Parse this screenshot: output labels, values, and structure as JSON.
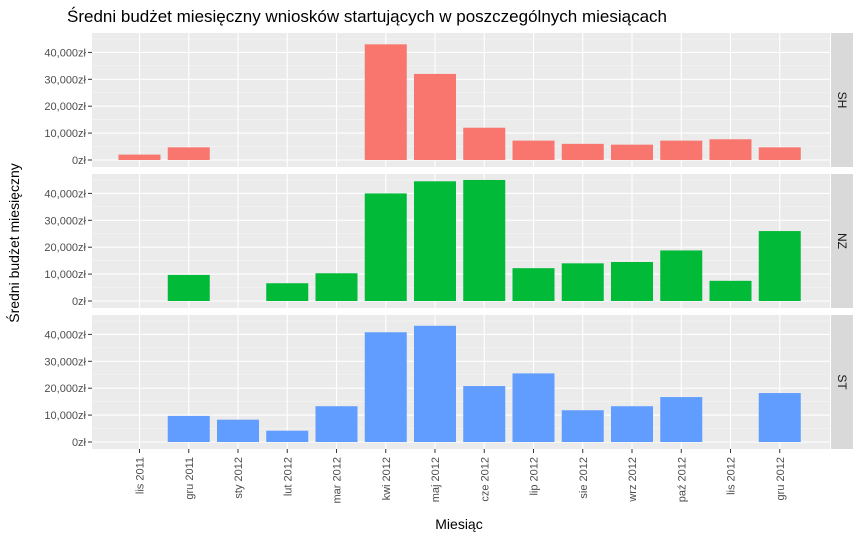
{
  "chart_data": {
    "type": "bar",
    "title": "Średni budżet miesięczny wniosków startujących w poszczególnych miesiącach",
    "xlabel": "Miesiąc",
    "ylabel": "Średni budżet miesięczny",
    "categories": [
      "lis 2011",
      "gru 2011",
      "sty 2012",
      "lut 2012",
      "mar 2012",
      "kwi 2012",
      "maj 2012",
      "cze 2012",
      "lip 2012",
      "sie 2012",
      "wrz 2012",
      "paź 2012",
      "lis 2012",
      "gru 2012"
    ],
    "y_ticks": [
      "0zł",
      "10,000zł",
      "20,000zł",
      "30,000zł",
      "40,000zł"
    ],
    "ylim": [
      0,
      46000
    ],
    "grid": true,
    "legend": "none",
    "facets": [
      {
        "name": "SH",
        "color": "#F8766D",
        "values": [
          2000,
          4700,
          null,
          null,
          null,
          43000,
          32000,
          12000,
          7200,
          6000,
          5700,
          7200,
          7700,
          4700
        ]
      },
      {
        "name": "NZ",
        "color": "#00BA38",
        "values": [
          null,
          9700,
          null,
          6600,
          10300,
          40000,
          44500,
          45000,
          12200,
          14000,
          14500,
          18800,
          7500,
          26000
        ]
      },
      {
        "name": "ST",
        "color": "#619CFF",
        "values": [
          null,
          9700,
          8300,
          4200,
          13300,
          40800,
          43200,
          20800,
          25500,
          11800,
          13300,
          16700,
          null,
          18200
        ]
      }
    ]
  }
}
